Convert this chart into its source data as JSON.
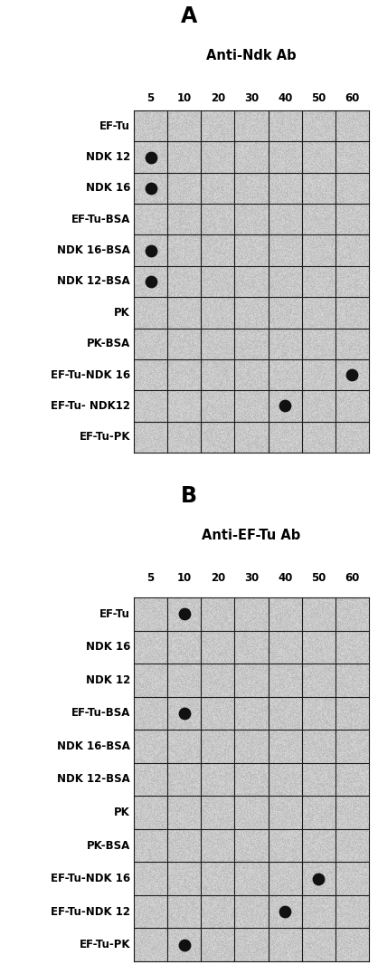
{
  "panel_A": {
    "title_letter": "A",
    "subtitle": "Anti-Ndk Ab",
    "rows": [
      "EF-Tu",
      "NDK 12",
      "NDK 16",
      "EF-Tu-BSA",
      "NDK 16-BSA",
      "NDK 12-BSA",
      "PK",
      "PK-BSA",
      "EF-Tu-NDK 16",
      "EF-Tu- NDK12",
      "EF-Tu-PK"
    ],
    "cols": [
      "5",
      "10",
      "20",
      "30",
      "40",
      "50",
      "60"
    ],
    "dots": [
      {
        "row": 1,
        "col": 0
      },
      {
        "row": 2,
        "col": 0
      },
      {
        "row": 4,
        "col": 0
      },
      {
        "row": 5,
        "col": 0
      },
      {
        "row": 8,
        "col": 6
      },
      {
        "row": 9,
        "col": 4
      }
    ]
  },
  "panel_B": {
    "title_letter": "B",
    "subtitle": "Anti-EF-Tu Ab",
    "rows": [
      "EF-Tu",
      "NDK 16",
      "NDK 12",
      "EF-Tu-BSA",
      "NDK 16-BSA",
      "NDK 12-BSA",
      "PK",
      "PK-BSA",
      "EF-Tu-NDK 16",
      "EF-Tu-NDK 12",
      "EF-Tu-PK"
    ],
    "cols": [
      "5",
      "10",
      "20",
      "30",
      "40",
      "50",
      "60"
    ],
    "dots": [
      {
        "row": 0,
        "col": 1
      },
      {
        "row": 3,
        "col": 1
      },
      {
        "row": 8,
        "col": 5
      },
      {
        "row": 9,
        "col": 4
      },
      {
        "row": 10,
        "col": 1
      }
    ]
  },
  "grid_color": "#1a1a1a",
  "dot_color": "#111111",
  "dot_size": 80,
  "label_fontsize": 8.5,
  "col_fontsize": 8.5,
  "subtitle_fontsize": 10.5,
  "letter_fontsize": 17,
  "fig_bg": "#ffffff",
  "noise_seed_A": 42,
  "noise_seed_B": 99
}
